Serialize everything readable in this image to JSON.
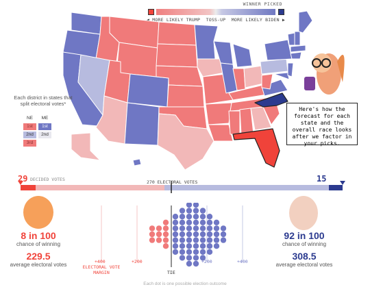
{
  "legend": {
    "winner_picked": "WINNER PICKED",
    "more_trump": "MORE LIKELY TRUMP",
    "tossup": "TOSS-UP",
    "more_biden": "MORE LIKELY BIDEN",
    "left_arrow": "◀",
    "right_arrow": "▶"
  },
  "split_legend": {
    "title": "Each district in states that split electoral votes*",
    "ne": "NE",
    "me": "ME",
    "d1": "1st",
    "d2": "2nd",
    "d3": "3rd"
  },
  "speech": "Here's how the forecast for each state and the overall race looks after we factor in your picks.",
  "bar": {
    "trump_votes": "29",
    "biden_votes": "15",
    "decided_label": "DECIDED VOTES",
    "middle_label": "270 ELECTORAL VOTES"
  },
  "trump": {
    "chance": "8 in 100",
    "chance_label": "chance of winning",
    "ev": "229.5",
    "ev_label": "average electoral votes"
  },
  "biden": {
    "chance": "92 in 100",
    "chance_label": "chance of winning",
    "ev": "308.5",
    "ev_label": "average electoral votes"
  },
  "dots": {
    "tie": "TIE",
    "margin_label": "ELECTORAL VOTE MARGIN",
    "ticks": [
      "+400",
      "+200",
      "+200",
      "+400"
    ],
    "note": "Each dot is one possible election outcome"
  },
  "colors": {
    "trump_strong": "#f07a7a",
    "trump_light": "#f2b8b8",
    "tossup": "#e8e8ef",
    "biden_light": "#b7bbdf",
    "biden_strong": "#6f77c4",
    "biden_picked": "#2b3a8f",
    "trump_picked": "#f0433a"
  }
}
